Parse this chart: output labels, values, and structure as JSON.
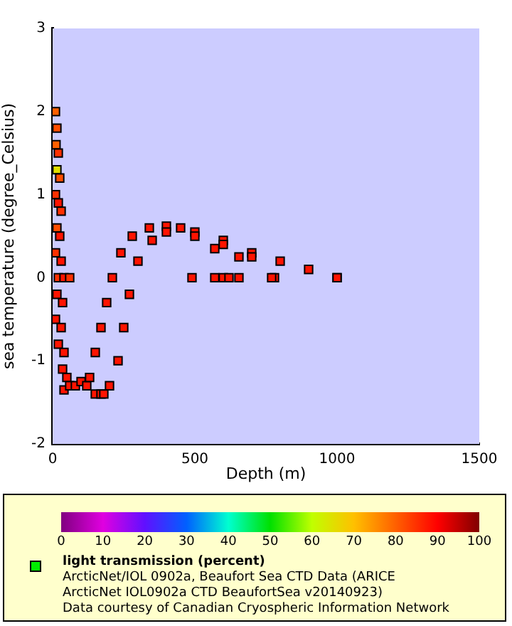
{
  "chart_data": {
    "type": "scatter",
    "xlabel": "Depth (m)",
    "ylabel": "sea temperature (degree_Celsius)",
    "clabel": "light transmission (percent)",
    "annotations": [
      "ArcticNet/IOL 0902a, Beaufort Sea CTD Data (ARICE",
      "ArcticNet IOL0902a CTD BeaufortSea v20140923)",
      "Data courtesy of Canadian Cryospheric Information Network"
    ],
    "marker": "square",
    "xlim": [
      0,
      1500
    ],
    "xticks": [
      0,
      500,
      1000,
      1500
    ],
    "ylim": [
      -2,
      3
    ],
    "yticks": [
      -2,
      -1,
      0,
      1,
      2,
      3
    ],
    "clim": [
      0,
      100
    ],
    "cticks": [
      0,
      10,
      20,
      30,
      40,
      50,
      60,
      70,
      80,
      90,
      100
    ],
    "x": [
      10,
      15,
      12,
      20,
      15,
      25,
      10,
      20,
      30,
      15,
      25,
      10,
      30,
      20,
      40,
      60,
      15,
      35,
      10,
      30,
      20,
      40,
      35,
      50,
      40,
      60,
      80,
      100,
      120,
      150,
      170,
      130,
      150,
      170,
      190,
      210,
      240,
      280,
      340,
      400,
      450,
      500,
      600,
      700,
      800,
      900,
      1000,
      180,
      200,
      230,
      250,
      270,
      300,
      350,
      400,
      500,
      600,
      700,
      780,
      490,
      570,
      600,
      620,
      655,
      770,
      1000,
      570,
      655
    ],
    "values": [
      2.0,
      1.8,
      1.6,
      1.5,
      1.3,
      1.2,
      1.0,
      0.9,
      0.8,
      0.6,
      0.5,
      0.3,
      0.2,
      0.0,
      0.0,
      0.0,
      -0.2,
      -0.3,
      -0.5,
      -0.6,
      -0.8,
      -0.9,
      -1.1,
      -1.2,
      -1.35,
      -1.3,
      -1.3,
      -1.25,
      -1.3,
      -1.4,
      -1.4,
      -1.2,
      -0.9,
      -0.6,
      -0.3,
      0.0,
      0.3,
      0.5,
      0.6,
      0.62,
      0.6,
      0.55,
      0.45,
      0.3,
      0.2,
      0.1,
      0.0,
      -1.4,
      -1.3,
      -1.0,
      -0.6,
      -0.2,
      0.2,
      0.45,
      0.55,
      0.5,
      0.4,
      0.25,
      0.0,
      0.0,
      0.0,
      0.0,
      0.0,
      0.0,
      0.0,
      0.0,
      0.35,
      0.25
    ],
    "cvalues": [
      80,
      82,
      80,
      85,
      65,
      82,
      85,
      88,
      85,
      82,
      88,
      85,
      88,
      85,
      88,
      85,
      88,
      88,
      88,
      88,
      88,
      88,
      88,
      88,
      88,
      88,
      88,
      88,
      88,
      88,
      88,
      88,
      88,
      88,
      88,
      88,
      88,
      88,
      88,
      88,
      88,
      88,
      88,
      88,
      88,
      88,
      88,
      88,
      88,
      88,
      88,
      88,
      88,
      88,
      88,
      88,
      88,
      88,
      88,
      88,
      88,
      88,
      88,
      88,
      88,
      88,
      88,
      88
    ]
  }
}
